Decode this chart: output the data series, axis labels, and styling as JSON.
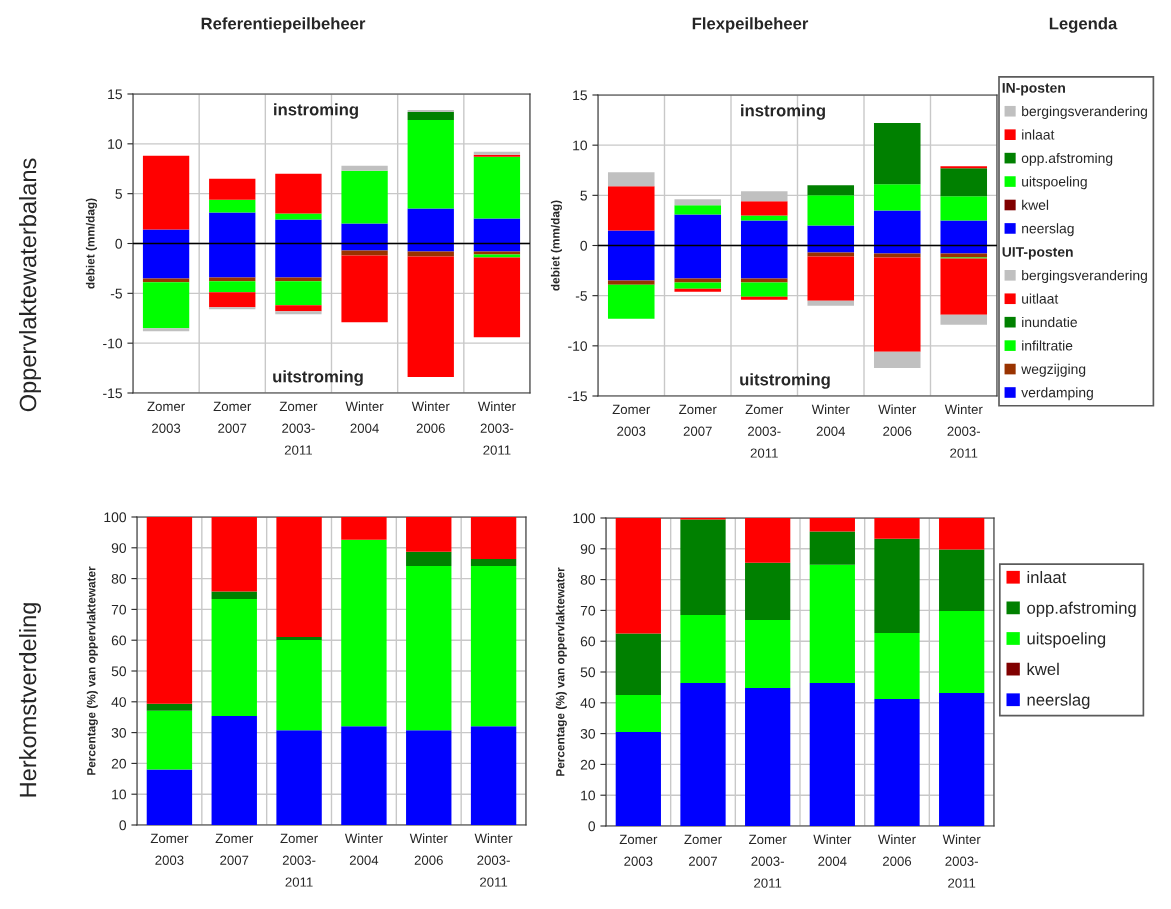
{
  "chart_data": [
    {
      "type": "bar",
      "stacked": true,
      "title": "Referentiepeilbeheer",
      "ylabel": "debiet (mm/dag)",
      "categories": [
        "Zomer\n2003",
        "Zomer\n2007",
        "Zomer\n2003-\n2011",
        "Winter\n2004",
        "Winter\n2006",
        "Winter\n2003-\n2011"
      ],
      "ylim": [
        -15,
        15
      ],
      "yticks": [
        -15,
        -10,
        -5,
        0,
        5,
        10,
        15
      ],
      "grid": true,
      "annotations": [
        "instroming",
        "uitstroming",
        "Oppervlaktewaterbalans"
      ],
      "series": [
        {
          "color": "#0000ff",
          "values": [
            1.4,
            3.1,
            2.4,
            2.0,
            3.5,
            2.5
          ]
        },
        {
          "color": "#00ff00",
          "values": [
            null,
            1.3,
            0.6,
            5.3,
            8.9,
            6.2
          ]
        },
        {
          "color": "#008000",
          "values": [
            null,
            null,
            null,
            null,
            0.8,
            null
          ]
        },
        {
          "color": "#ff0000",
          "values": [
            7.4,
            2.1,
            4.0,
            null,
            null,
            0.2
          ]
        },
        {
          "color": "#c0c0c0",
          "values": [
            null,
            null,
            null,
            0.5,
            0.2,
            0.3
          ]
        },
        {
          "color": "#0000ff",
          "values": [
            -3.5,
            -3.4,
            -3.4,
            -0.7,
            -0.8,
            -0.8
          ]
        },
        {
          "color": "#993300",
          "values": [
            -0.4,
            -0.4,
            -0.4,
            -0.5,
            -0.5,
            -0.3
          ]
        },
        {
          "color": "#00ff00",
          "values": [
            -4.6,
            -1.1,
            -2.4,
            null,
            null,
            -0.3
          ]
        },
        {
          "color": "#ff0000",
          "values": [
            null,
            -1.5,
            -0.6,
            -6.7,
            -12.1,
            -8.0
          ]
        },
        {
          "color": "#c0c0c0",
          "values": [
            -0.3,
            -0.2,
            -0.3,
            null,
            null,
            null
          ]
        }
      ]
    },
    {
      "type": "bar",
      "stacked": true,
      "title": "Flexpeilbeheer",
      "ylabel": "debiet (mm/dag)",
      "categories": [
        "Zomer\n2003",
        "Zomer\n2007",
        "Zomer\n2003-\n2011",
        "Winter\n2004",
        "Winter\n2006",
        "Winter\n2003-\n2011"
      ],
      "ylim": [
        -15,
        15
      ],
      "yticks": [
        -15,
        -10,
        -5,
        0,
        5,
        10,
        15
      ],
      "grid": true,
      "legend": "right",
      "annotations": [
        "instroming",
        "uitstroming",
        "Legenda",
        "IN-posten",
        "UIT-posten"
      ],
      "series": [
        {
          "name": "neerslag",
          "color": "#0000ff",
          "values": [
            1.5,
            3.1,
            2.5,
            2.0,
            3.5,
            2.5
          ]
        },
        {
          "name": "kwel",
          "color": "#800000",
          "values": [
            null,
            null,
            null,
            null,
            null,
            null
          ]
        },
        {
          "name": "uitspoeling",
          "color": "#00ff00",
          "values": [
            null,
            0.9,
            0.5,
            3.0,
            2.6,
            2.4
          ]
        },
        {
          "name": "opp.afstroming",
          "color": "#008000",
          "values": [
            null,
            null,
            null,
            1.0,
            6.1,
            2.8
          ]
        },
        {
          "name": "inlaat",
          "color": "#ff0000",
          "values": [
            4.4,
            null,
            1.4,
            null,
            null,
            0.2
          ]
        },
        {
          "name": "bergingsverandering",
          "color": "#c0c0c0",
          "values": [
            1.4,
            0.6,
            1.0,
            null,
            null,
            null
          ]
        },
        {
          "name": "verdamping",
          "color": "#0000ff",
          "values": [
            -3.5,
            -3.3,
            -3.3,
            -0.7,
            -0.8,
            -0.8
          ]
        },
        {
          "name": "wegzijging",
          "color": "#993300",
          "values": [
            -0.4,
            -0.4,
            -0.4,
            -0.4,
            -0.4,
            -0.4
          ]
        },
        {
          "name": "infiltratie",
          "color": "#00ff00",
          "values": [
            -3.4,
            -0.6,
            -1.4,
            null,
            null,
            -0.1
          ]
        },
        {
          "name": "inundatie",
          "color": "#008000",
          "values": [
            null,
            null,
            null,
            null,
            null,
            null
          ]
        },
        {
          "name": "uitlaat",
          "color": "#ff0000",
          "values": [
            null,
            -0.3,
            -0.3,
            -4.4,
            -9.4,
            -5.6
          ]
        },
        {
          "name": "bergingsverandering",
          "color": "#c0c0c0",
          "values": [
            null,
            null,
            null,
            -0.5,
            -1.6,
            -1.0
          ]
        }
      ]
    },
    {
      "type": "bar",
      "stacked": true,
      "ylabel": "Percentage (%) van oppervlaktewater",
      "categories": [
        "Zomer\n2003",
        "Zomer\n2007",
        "Zomer\n2003-\n2011",
        "Winter\n2004",
        "Winter\n2006",
        "Winter\n2003-\n2011"
      ],
      "ylim": [
        0,
        100
      ],
      "yticks": [
        0,
        10,
        20,
        30,
        40,
        50,
        60,
        70,
        80,
        90,
        100
      ],
      "grid": true,
      "annotations": [
        "Herkomstverdeling"
      ],
      "series": [
        {
          "color": "#0000ff",
          "values": [
            18.0,
            35.4,
            30.8,
            32.1,
            30.8,
            32.1
          ]
        },
        {
          "color": "#00ff00",
          "values": [
            19.1,
            38.0,
            29.3,
            60.5,
            53.3,
            52.0
          ]
        },
        {
          "color": "#008000",
          "values": [
            2.3,
            2.4,
            0.9,
            null,
            4.6,
            2.3
          ]
        },
        {
          "color": "#ff0000",
          "values": [
            60.6,
            24.2,
            39.0,
            7.4,
            11.3,
            13.6
          ]
        }
      ]
    },
    {
      "type": "bar",
      "stacked": true,
      "ylabel": "Percentage (%) van oppervlaktewater",
      "categories": [
        "Zomer\n2003",
        "Zomer\n2007",
        "Zomer\n2003-\n2011",
        "Winter\n2004",
        "Winter\n2006",
        "Winter\n2003-\n2011"
      ],
      "ylim": [
        0,
        100
      ],
      "yticks": [
        0,
        10,
        20,
        30,
        40,
        50,
        60,
        70,
        80,
        90,
        100
      ],
      "grid": true,
      "legend": "right",
      "series": [
        {
          "name": "neerslag",
          "color": "#0000ff",
          "values": [
            30.5,
            46.4,
            44.8,
            46.4,
            41.2,
            43.2
          ]
        },
        {
          "name": "kwel",
          "color": "#800000",
          "values": [
            null,
            null,
            null,
            null,
            null,
            null
          ]
        },
        {
          "name": "uitspoeling",
          "color": "#00ff00",
          "values": [
            12.0,
            22.1,
            22.1,
            38.4,
            21.5,
            26.6
          ]
        },
        {
          "name": "opp.afstroming",
          "color": "#008000",
          "values": [
            20.0,
            31.0,
            18.6,
            10.8,
            30.6,
            20.0
          ]
        },
        {
          "name": "inlaat",
          "color": "#ff0000",
          "values": [
            37.5,
            0.5,
            14.5,
            4.4,
            6.7,
            10.2
          ]
        }
      ]
    }
  ]
}
